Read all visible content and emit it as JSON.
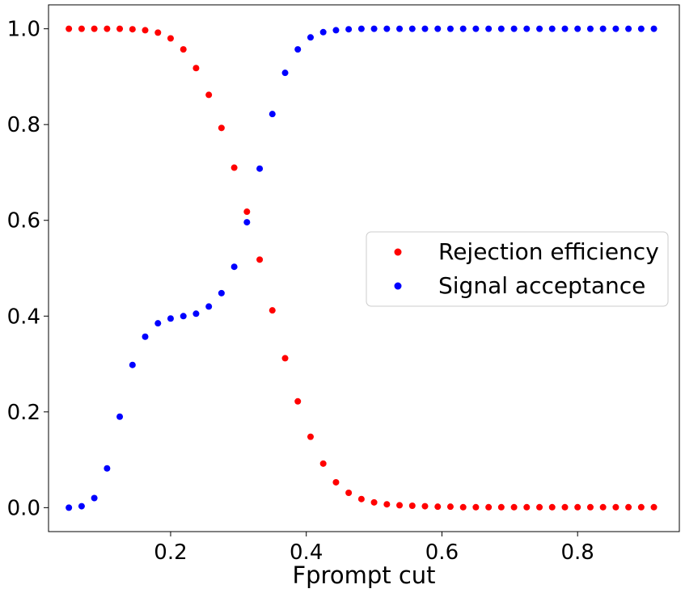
{
  "chart_data": {
    "type": "scatter",
    "xlabel": "Fprompt cut",
    "ylabel": "",
    "xlim": [
      0.02,
      0.95
    ],
    "ylim": [
      -0.05,
      1.05
    ],
    "xticks": [
      0.2,
      0.4,
      0.6,
      0.8
    ],
    "xtick_labels": [
      "0.2",
      "0.4",
      "0.6",
      "0.8"
    ],
    "yticks": [
      0.0,
      0.2,
      0.4,
      0.6,
      0.8,
      1.0
    ],
    "ytick_labels": [
      "0.0",
      "0.2",
      "0.4",
      "0.6",
      "0.8",
      "1.0"
    ],
    "grid": false,
    "legend_position": "center-right",
    "x": [
      0.05,
      0.0688,
      0.0875,
      0.1063,
      0.125,
      0.1438,
      0.1625,
      0.1813,
      0.2,
      0.2188,
      0.2375,
      0.2563,
      0.275,
      0.2938,
      0.3125,
      0.3313,
      0.35,
      0.3688,
      0.3875,
      0.4063,
      0.425,
      0.4438,
      0.4625,
      0.4813,
      0.5,
      0.5188,
      0.5375,
      0.5563,
      0.575,
      0.5938,
      0.6125,
      0.6313,
      0.65,
      0.6688,
      0.6875,
      0.7063,
      0.725,
      0.7438,
      0.7625,
      0.7813,
      0.8,
      0.8188,
      0.8375,
      0.8563,
      0.875,
      0.8938,
      0.9125
    ],
    "series": [
      {
        "name": "Rejection efficiency",
        "color": "#ff0000",
        "values": [
          1.0,
          1.0,
          1.0,
          1.0,
          1.0,
          0.999,
          0.997,
          0.992,
          0.98,
          0.957,
          0.918,
          0.862,
          0.793,
          0.71,
          0.618,
          0.518,
          0.412,
          0.312,
          0.222,
          0.148,
          0.092,
          0.053,
          0.031,
          0.018,
          0.011,
          0.007,
          0.005,
          0.004,
          0.003,
          0.002,
          0.002,
          0.001,
          0.001,
          0.001,
          0.001,
          0.001,
          0.001,
          0.001,
          0.001,
          0.001,
          0.001,
          0.001,
          0.001,
          0.001,
          0.001,
          0.001,
          0.001
        ]
      },
      {
        "name": "Signal acceptance",
        "color": "#0000ff",
        "values": [
          0.0,
          0.003,
          0.02,
          0.082,
          0.19,
          0.298,
          0.357,
          0.385,
          0.395,
          0.4,
          0.405,
          0.42,
          0.448,
          0.503,
          0.596,
          0.708,
          0.822,
          0.908,
          0.957,
          0.982,
          0.993,
          0.997,
          0.999,
          1.0,
          1.0,
          1.0,
          1.0,
          1.0,
          1.0,
          1.0,
          1.0,
          1.0,
          1.0,
          1.0,
          1.0,
          1.0,
          1.0,
          1.0,
          1.0,
          1.0,
          1.0,
          1.0,
          1.0,
          1.0,
          1.0,
          1.0,
          1.0
        ]
      }
    ]
  }
}
